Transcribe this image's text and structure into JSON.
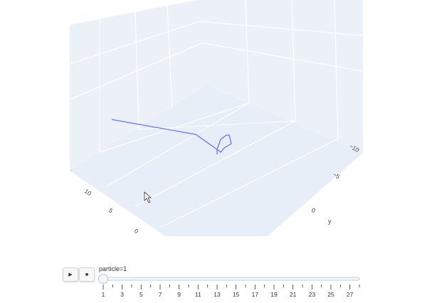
{
  "scene": {
    "x_axis_ticks": [
      "10",
      "5",
      "0"
    ],
    "y_axis_ticks": [
      "−10",
      "−5",
      "0"
    ],
    "y_axis_title": "y",
    "background_color": "#e5ecf6",
    "grid_color": "#ffffff",
    "trace_color": "#636efa"
  },
  "animation": {
    "play_icon": "play-icon",
    "stop_icon": "stop-icon",
    "play_label": "▶",
    "stop_label": "■",
    "current_prefix": "particle=",
    "current_value": "1",
    "slider_labels": [
      "1",
      "3",
      "5",
      "7",
      "9",
      "11",
      "13",
      "15",
      "17",
      "19",
      "21",
      "23",
      "25",
      "27"
    ],
    "slider_steps": 28,
    "slider_position": 0
  }
}
